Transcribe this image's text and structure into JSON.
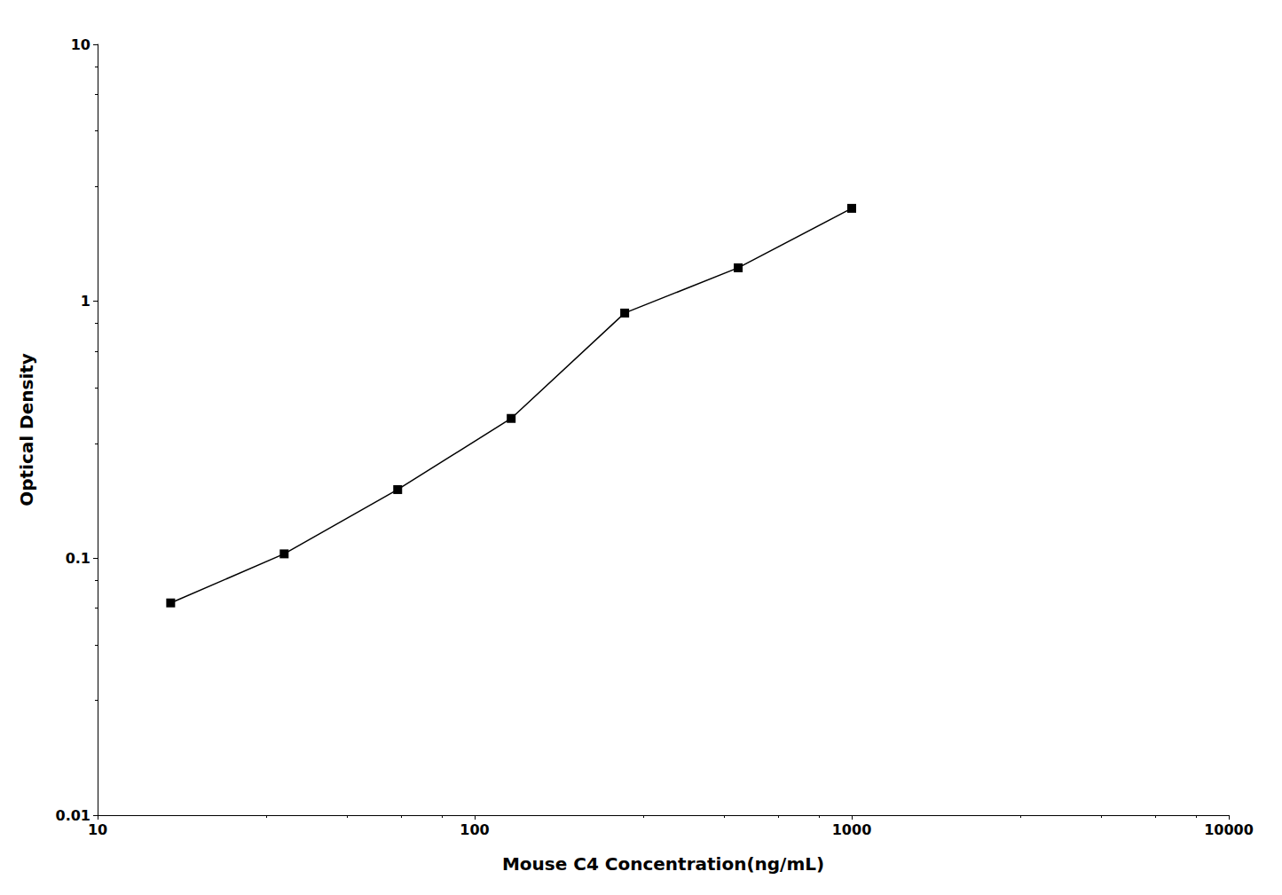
{
  "chart_data": {
    "type": "line",
    "x": [
      15.625,
      31.25,
      62.5,
      125,
      250,
      500,
      1000
    ],
    "values": [
      0.067,
      0.104,
      0.185,
      0.35,
      0.9,
      1.35,
      2.3
    ],
    "xlabel": "Mouse C4 Concentration(ng/mL)",
    "ylabel": "Optical Density",
    "xlim": [
      10,
      10000
    ],
    "ylim": [
      0.01,
      10
    ],
    "xticks": [
      10,
      100,
      1000,
      10000
    ],
    "yticks": [
      0.01,
      0.1,
      1,
      10
    ],
    "log": true,
    "grid": false,
    "color": "#000000",
    "marker": "square"
  }
}
